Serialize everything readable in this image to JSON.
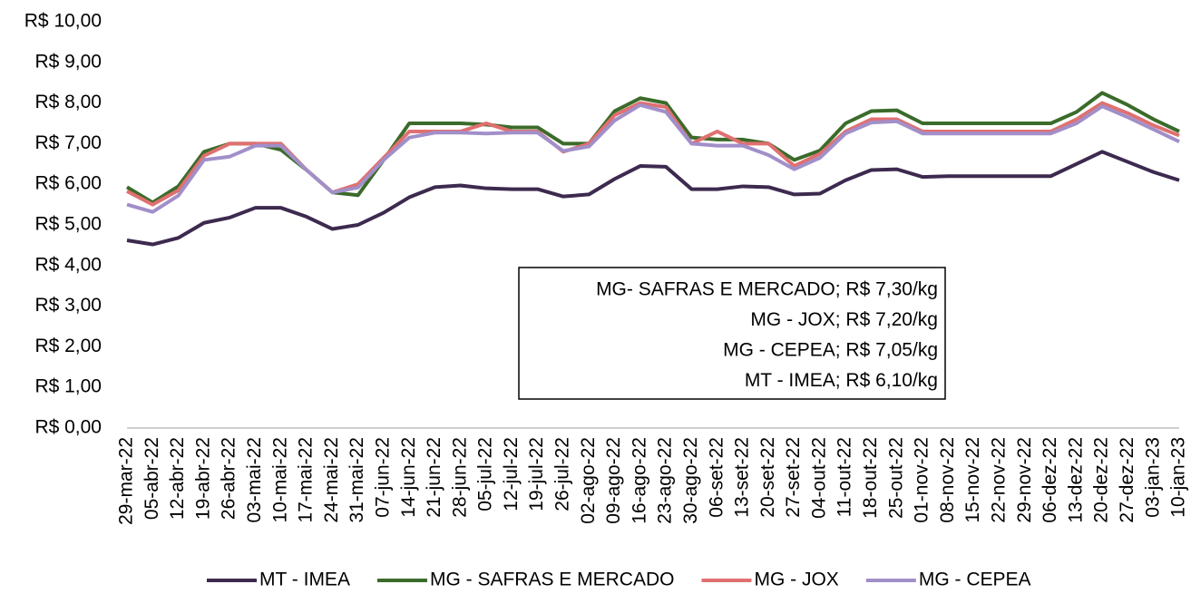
{
  "chart_data": {
    "type": "line",
    "categories": [
      "29-mar-22",
      "05-abr-22",
      "12-abr-22",
      "19-abr-22",
      "26-abr-22",
      "03-mai-22",
      "10-mai-22",
      "17-mai-22",
      "24-mai-22",
      "31-mai-22",
      "07-jun-22",
      "14-jun-22",
      "21-jun-22",
      "28-jun-22",
      "05-jul-22",
      "12-jul-22",
      "19-jul-22",
      "26-jul-22",
      "02-ago-22",
      "09-ago-22",
      "16-ago-22",
      "23-ago-22",
      "30-ago-22",
      "06-set-22",
      "13-set-22",
      "20-set-22",
      "27-set-22",
      "04-out-22",
      "11-out-22",
      "18-out-22",
      "25-out-22",
      "01-nov-22",
      "08-nov-22",
      "15-nov-22",
      "22-nov-22",
      "29-nov-22",
      "06-dez-22",
      "13-dez-22",
      "20-dez-22",
      "27-dez-22",
      "03-jan-23",
      "10-jan-23"
    ],
    "series": [
      {
        "name": "MT - IMEA",
        "color": "#3d2a4f",
        "values": [
          4.62,
          4.52,
          4.68,
          5.05,
          5.18,
          5.42,
          5.42,
          5.2,
          4.9,
          5.0,
          5.3,
          5.68,
          5.93,
          5.97,
          5.9,
          5.88,
          5.88,
          5.7,
          5.75,
          6.13,
          6.45,
          6.43,
          5.88,
          5.88,
          5.95,
          5.93,
          5.75,
          5.77,
          6.1,
          6.35,
          6.37,
          6.18,
          6.2,
          6.2,
          6.2,
          6.2,
          6.2,
          6.5,
          6.8,
          6.55,
          6.3,
          6.1
        ]
      },
      {
        "name": "MG - SAFRAS E MERCADO",
        "color": "#3b6b2a",
        "values": [
          5.93,
          5.55,
          5.95,
          6.8,
          7.0,
          7.0,
          6.85,
          6.35,
          5.8,
          5.73,
          6.6,
          7.5,
          7.5,
          7.5,
          7.47,
          7.4,
          7.4,
          7.0,
          7.0,
          7.8,
          8.12,
          8.0,
          7.15,
          7.1,
          7.1,
          7.0,
          6.6,
          6.83,
          7.5,
          7.8,
          7.82,
          7.5,
          7.5,
          7.5,
          7.5,
          7.5,
          7.5,
          7.78,
          8.25,
          7.95,
          7.6,
          7.3
        ]
      },
      {
        "name": "MG - JOX",
        "color": "#e07070",
        "values": [
          5.83,
          5.5,
          5.85,
          6.7,
          7.0,
          7.0,
          7.0,
          6.35,
          5.8,
          6.0,
          6.65,
          7.3,
          7.3,
          7.3,
          7.5,
          7.3,
          7.3,
          6.8,
          7.0,
          7.7,
          8.0,
          7.9,
          7.0,
          7.3,
          7.0,
          7.0,
          6.45,
          6.75,
          7.3,
          7.6,
          7.6,
          7.3,
          7.3,
          7.3,
          7.3,
          7.3,
          7.3,
          7.6,
          8.0,
          7.75,
          7.45,
          7.2
        ]
      },
      {
        "name": "MG - CEPEA",
        "color": "#a18fc9",
        "values": [
          5.5,
          5.32,
          5.72,
          6.6,
          6.68,
          6.95,
          6.95,
          6.35,
          5.8,
          5.92,
          6.6,
          7.15,
          7.27,
          7.27,
          7.25,
          7.27,
          7.27,
          6.82,
          6.93,
          7.57,
          7.95,
          7.78,
          7.0,
          6.95,
          6.95,
          6.72,
          6.37,
          6.65,
          7.25,
          7.52,
          7.55,
          7.25,
          7.25,
          7.25,
          7.25,
          7.25,
          7.25,
          7.5,
          7.92,
          7.65,
          7.35,
          7.05
        ]
      }
    ],
    "ylim": [
      0,
      10
    ],
    "yticks": [
      {
        "value": 0,
        "label": "R$ 0,00"
      },
      {
        "value": 1,
        "label": "R$ 1,00"
      },
      {
        "value": 2,
        "label": "R$ 2,00"
      },
      {
        "value": 3,
        "label": "R$ 3,00"
      },
      {
        "value": 4,
        "label": "R$ 4,00"
      },
      {
        "value": 5,
        "label": "R$ 5,00"
      },
      {
        "value": 6,
        "label": "R$ 6,00"
      },
      {
        "value": 7,
        "label": "R$ 7,00"
      },
      {
        "value": 8,
        "label": "R$ 8,00"
      },
      {
        "value": 9,
        "label": "R$ 9,00"
      },
      {
        "value": 10,
        "label": "R$ 10,00"
      }
    ],
    "grid": false,
    "legend": "bottom",
    "annotations": [
      "MG- SAFRAS E MERCADO; R$ 7,30/kg",
      "MG - JOX; R$ 7,20/kg",
      "MG - CEPEA; R$ 7,05/kg",
      "MT - IMEA; R$ 6,10/kg"
    ]
  }
}
